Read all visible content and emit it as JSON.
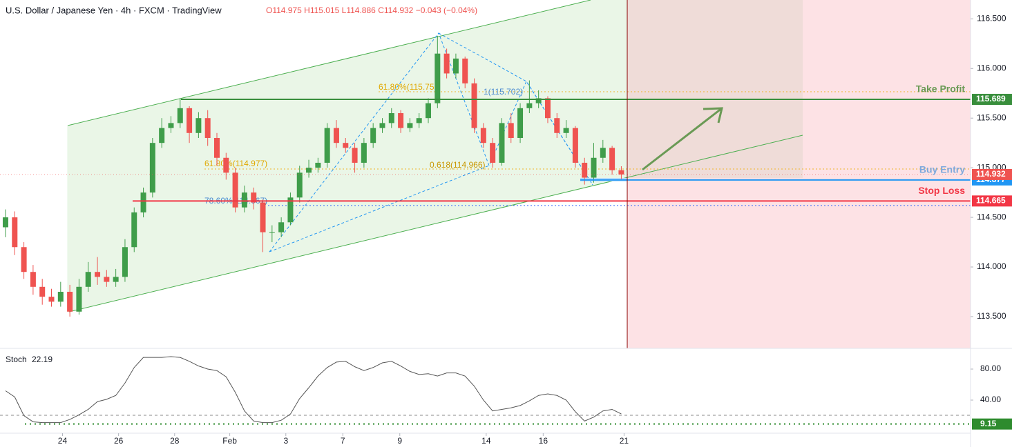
{
  "chart_data": [
    {
      "type": "candlestick",
      "title": "U.S. Dollar / Japanese Yen · 4h · FXCM · TradingView",
      "header": [
        "O114.975",
        "H115.015",
        "L114.886",
        "C114.932",
        "−0.043 (−0.04%)"
      ],
      "open": [
        114.4,
        114.5,
        114.2,
        113.95,
        113.8,
        113.7,
        113.65,
        113.75,
        113.55,
        113.8,
        113.95,
        113.9,
        113.85,
        113.9,
        114.2,
        114.55,
        114.75,
        115.25,
        115.4,
        115.45,
        115.6,
        115.35,
        115.5,
        115.3,
        115.1,
        114.95,
        114.6,
        114.75,
        114.65,
        114.35,
        114.35,
        114.45,
        114.7,
        114.95,
        115.0,
        115.05,
        115.4,
        115.25,
        115.2,
        115.05,
        115.25,
        115.4,
        115.45,
        115.55,
        115.4,
        115.45,
        115.5,
        115.65,
        116.15,
        115.95,
        116.1,
        115.85,
        115.4,
        115.25,
        115.05,
        115.45,
        115.3,
        115.6,
        115.65,
        115.7,
        115.5,
        115.35,
        115.4,
        115.05,
        114.9,
        115.1,
        115.2,
        114.975
      ],
      "high": [
        114.58,
        114.56,
        114.25,
        114.02,
        113.88,
        113.78,
        113.85,
        113.82,
        113.88,
        114.05,
        114.1,
        113.97,
        113.98,
        114.28,
        114.6,
        114.8,
        115.3,
        115.5,
        115.52,
        115.7,
        115.62,
        115.56,
        115.58,
        115.35,
        115.15,
        115.0,
        114.82,
        114.8,
        114.68,
        114.42,
        114.5,
        114.75,
        115.02,
        115.08,
        115.1,
        115.45,
        115.48,
        115.3,
        115.25,
        115.3,
        115.45,
        115.5,
        115.6,
        115.58,
        115.5,
        115.55,
        115.7,
        116.33,
        116.2,
        116.15,
        116.12,
        115.9,
        115.45,
        115.3,
        115.5,
        115.55,
        115.65,
        115.88,
        115.78,
        115.72,
        115.55,
        115.48,
        115.42,
        115.1,
        115.25,
        115.28,
        115.22,
        115.015
      ],
      "low": [
        114.3,
        114.12,
        113.88,
        113.72,
        113.62,
        113.6,
        113.6,
        113.5,
        113.52,
        113.75,
        113.82,
        113.8,
        113.8,
        113.85,
        114.15,
        114.5,
        114.7,
        115.2,
        115.35,
        115.4,
        115.25,
        115.3,
        115.22,
        115.02,
        114.88,
        114.55,
        114.55,
        114.58,
        114.15,
        114.25,
        114.3,
        114.42,
        114.65,
        114.9,
        114.95,
        115.0,
        115.2,
        115.15,
        114.95,
        115.0,
        115.2,
        115.35,
        115.4,
        115.35,
        115.36,
        115.4,
        115.45,
        115.6,
        115.9,
        115.9,
        115.8,
        115.35,
        115.2,
        115.0,
        115.02,
        115.25,
        115.25,
        115.55,
        115.6,
        115.45,
        115.3,
        115.3,
        115.0,
        114.83,
        114.85,
        115.05,
        114.93,
        114.886
      ],
      "close": [
        114.5,
        114.2,
        113.95,
        113.8,
        113.7,
        113.65,
        113.75,
        113.55,
        113.8,
        113.95,
        113.9,
        113.85,
        113.9,
        114.2,
        114.55,
        114.75,
        115.25,
        115.4,
        115.45,
        115.6,
        115.35,
        115.5,
        115.3,
        115.1,
        114.95,
        114.6,
        114.75,
        114.65,
        114.35,
        114.35,
        114.45,
        114.7,
        114.95,
        115.0,
        115.05,
        115.4,
        115.25,
        115.2,
        115.05,
        115.25,
        115.4,
        115.45,
        115.55,
        115.4,
        115.45,
        115.5,
        115.65,
        116.15,
        115.95,
        116.1,
        115.85,
        115.4,
        115.25,
        115.05,
        115.45,
        115.3,
        115.6,
        115.65,
        115.7,
        115.5,
        115.35,
        115.4,
        115.05,
        114.9,
        115.1,
        115.2,
        114.975,
        114.932
      ],
      "up_color": "#3f9d4a",
      "down_color": "#ef5350",
      "last_color": "#ef5350",
      "xlim": [
        -0.6,
        105.0
      ],
      "xticks": [
        {
          "value": 6.2,
          "label": "24"
        },
        {
          "value": 12.3,
          "label": "26"
        },
        {
          "value": 18.4,
          "label": "28"
        },
        {
          "value": 24.4,
          "label": "Feb"
        },
        {
          "value": 30.5,
          "label": "3"
        },
        {
          "value": 36.7,
          "label": "7"
        },
        {
          "value": 42.9,
          "label": "9"
        },
        {
          "value": 52.3,
          "label": "14"
        },
        {
          "value": 58.5,
          "label": "16"
        },
        {
          "value": 67.3,
          "label": "21"
        }
      ],
      "ylim": [
        113.18,
        116.69
      ],
      "yticks": [
        {
          "value": 116.5,
          "label": "116.500"
        },
        {
          "value": 116.0,
          "label": "116.000"
        },
        {
          "value": 115.5,
          "label": "115.500"
        },
        {
          "value": 115.0,
          "label": "115.000"
        },
        {
          "value": 114.5,
          "label": "114.500"
        },
        {
          "value": 114.0,
          "label": "114.000"
        },
        {
          "value": 113.5,
          "label": "113.500"
        }
      ],
      "levels": [
        {
          "name": "Take Profit",
          "value": 115.689,
          "color": "#388e3c",
          "text_color": "#6b9a55"
        },
        {
          "name": "Buy Entry",
          "value": 114.877,
          "color": "#2196f3",
          "text_color": "#7ea8dc"
        },
        {
          "name": "Stop Loss",
          "value": 114.665,
          "color": "#f23645",
          "text_color": "#f23645"
        }
      ],
      "annotations": [
        "61.80%(115.75",
        "1(115.702)",
        "61.80%(114.977)",
        "0.618(114.966)",
        "78.60%(114.667)"
      ]
    },
    {
      "type": "line",
      "title": "Stoch",
      "color": "#555555",
      "values": [
        52,
        44,
        20,
        12,
        11,
        11,
        11,
        15,
        21,
        28,
        38,
        41,
        46,
        62,
        82,
        95,
        95,
        95,
        96,
        95,
        90,
        84,
        80,
        78,
        70,
        50,
        26,
        13,
        11,
        11,
        14,
        22,
        42,
        56,
        71,
        82,
        89,
        90,
        83,
        78,
        82,
        88,
        90,
        84,
        77,
        73,
        74,
        71,
        75,
        75,
        71,
        58,
        40,
        26,
        28,
        30,
        33,
        39,
        46,
        48,
        46,
        40,
        25,
        13,
        18,
        26,
        28,
        22.19
      ],
      "ylim": [
        -2.7,
        106.7
      ],
      "yticks": [
        {
          "value": 80,
          "label": "80.00"
        },
        {
          "value": 40,
          "label": "40.00"
        }
      ],
      "level": 9.15,
      "level_color": "#2e8b2e"
    }
  ]
}
